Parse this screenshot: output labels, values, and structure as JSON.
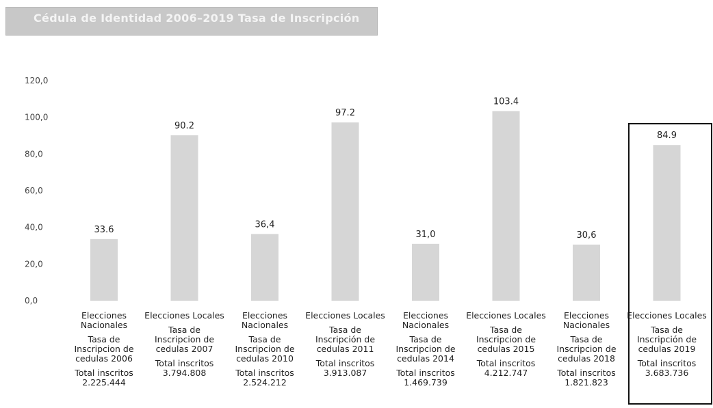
{
  "header": {
    "title": "Cédula de Identidad 2006–2019 Tasa de Inscripción"
  },
  "chart_data": {
    "type": "bar",
    "ylim": [
      0,
      120
    ],
    "yticks": [
      "0,0",
      "20,0",
      "40,0",
      "60,0",
      "80,0",
      "100,0",
      "120,0"
    ],
    "values": [
      33.6,
      90.2,
      36.4,
      97.2,
      31.0,
      103.4,
      30.6,
      84.9
    ],
    "value_labels": [
      "33.6",
      "90.2",
      "36,4",
      "97.2",
      "31,0",
      "103.4",
      "30,6",
      "84.9"
    ],
    "categories": [
      {
        "election": "Elecciones Nacionales",
        "rate": "Tasa de Inscripcion de cedulas 2006",
        "total": "Total inscritos 2.225.444"
      },
      {
        "election": "Elecciones Locales",
        "rate": "Tasa de Inscripcion de cedulas 2007",
        "total": "Total inscritos 3.794.808"
      },
      {
        "election": "Elecciones Nacionales",
        "rate": "Tasa de Inscripcion de cedulas 2010",
        "total": "Total inscritos 2.524.212"
      },
      {
        "election": "Elecciones Locales",
        "rate": "Tasa de Inscripción de cedulas 2011",
        "total": "Total inscritos 3.913.087"
      },
      {
        "election": "Elecciones Nacionales",
        "rate": "Tasa de Inscripcion de cedulas 2014",
        "total": "Total inscritos 1.469.739"
      },
      {
        "election": "Elecciones Locales",
        "rate": "Tasa de Inscripcion de cedulas 2015",
        "total": "Total inscritos 4.212.747"
      },
      {
        "election": "Elecciones Nacionales",
        "rate": "Tasa de Inscripcion de cedulas 2018",
        "total": "Total inscritos 1.821.823"
      },
      {
        "election": "Elecciones Locales",
        "rate": "Tasa de Inscripción de cedulas 2019",
        "total": "Total inscritos 3.683.736"
      }
    ],
    "highlighted_index": 7,
    "grid": false,
    "bar_color": "#d6d6d6"
  }
}
